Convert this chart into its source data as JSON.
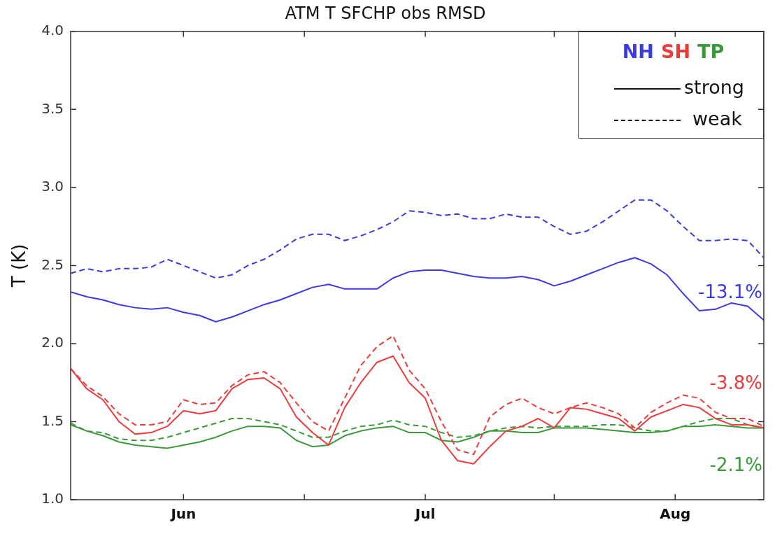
{
  "chart_data": {
    "type": "line",
    "title": "ATM T SFCHP obs RMSD",
    "ylabel": "T (K)",
    "x": [
      "--05-18",
      "--05-20",
      "--05-22",
      "--05-24",
      "--05-26",
      "--05-28",
      "--05-30",
      "--06-01",
      "--06-03",
      "--06-05",
      "--06-07",
      "--06-09",
      "--06-11",
      "--06-13",
      "--06-15",
      "--06-17",
      "--06-19",
      "--06-21",
      "--06-23",
      "--06-25",
      "--06-27",
      "--06-29",
      "--07-01",
      "--07-03",
      "--07-05",
      "--07-07",
      "--07-09",
      "--07-11",
      "--07-13",
      "--07-15",
      "--07-17",
      "--07-19",
      "--07-21",
      "--07-23",
      "--07-25",
      "--07-27",
      "--07-29",
      "--07-31",
      "--08-02",
      "--08-04",
      "--08-06",
      "--08-08",
      "--08-10",
      "--08-12"
    ],
    "series": [
      {
        "color": "#3b3be0",
        "line_style": "solid",
        "values": [
          2.33,
          2.3,
          2.28,
          2.25,
          2.23,
          2.22,
          2.23,
          2.2,
          2.18,
          2.14,
          2.17,
          2.21,
          2.25,
          2.28,
          2.32,
          2.36,
          2.38,
          2.35,
          2.35,
          2.35,
          2.42,
          2.46,
          2.47,
          2.47,
          2.45,
          2.43,
          2.42,
          2.42,
          2.43,
          2.41,
          2.37,
          2.4,
          2.44,
          2.48,
          2.52,
          2.55,
          2.51,
          2.44,
          2.32,
          2.21,
          2.22,
          2.26,
          2.24,
          2.15
        ]
      },
      {
        "color": "#3b3be0",
        "line_style": "dashed",
        "values": [
          2.45,
          2.48,
          2.46,
          2.48,
          2.48,
          2.49,
          2.54,
          2.5,
          2.46,
          2.42,
          2.44,
          2.5,
          2.54,
          2.6,
          2.67,
          2.7,
          2.7,
          2.66,
          2.69,
          2.73,
          2.78,
          2.85,
          2.84,
          2.82,
          2.83,
          2.8,
          2.8,
          2.83,
          2.81,
          2.81,
          2.75,
          2.7,
          2.72,
          2.78,
          2.85,
          2.92,
          2.92,
          2.85,
          2.75,
          2.66,
          2.66,
          2.67,
          2.66,
          2.55
        ]
      },
      {
        "color": "#ee3a3a",
        "line_style": "solid",
        "values": [
          1.84,
          1.71,
          1.64,
          1.5,
          1.42,
          1.43,
          1.47,
          1.57,
          1.55,
          1.57,
          1.71,
          1.77,
          1.78,
          1.71,
          1.53,
          1.43,
          1.35,
          1.59,
          1.75,
          1.88,
          1.92,
          1.75,
          1.65,
          1.38,
          1.25,
          1.23,
          1.34,
          1.44,
          1.47,
          1.52,
          1.46,
          1.59,
          1.58,
          1.55,
          1.52,
          1.44,
          1.53,
          1.57,
          1.61,
          1.59,
          1.52,
          1.48,
          1.48,
          1.46
        ]
      },
      {
        "color": "#ee3a3a",
        "line_style": "dashed",
        "values": [
          1.84,
          1.73,
          1.66,
          1.55,
          1.48,
          1.48,
          1.5,
          1.64,
          1.61,
          1.62,
          1.73,
          1.8,
          1.82,
          1.75,
          1.62,
          1.5,
          1.44,
          1.65,
          1.86,
          1.98,
          2.05,
          1.83,
          1.71,
          1.5,
          1.32,
          1.29,
          1.53,
          1.61,
          1.65,
          1.59,
          1.55,
          1.59,
          1.62,
          1.59,
          1.55,
          1.46,
          1.56,
          1.62,
          1.67,
          1.65,
          1.56,
          1.52,
          1.52,
          1.47
        ]
      },
      {
        "color": "#3a9a3a",
        "line_style": "solid",
        "values": [
          1.48,
          1.44,
          1.41,
          1.37,
          1.35,
          1.34,
          1.33,
          1.35,
          1.37,
          1.4,
          1.44,
          1.47,
          1.47,
          1.46,
          1.38,
          1.34,
          1.35,
          1.41,
          1.44,
          1.46,
          1.47,
          1.43,
          1.43,
          1.38,
          1.37,
          1.4,
          1.44,
          1.44,
          1.43,
          1.43,
          1.46,
          1.46,
          1.46,
          1.45,
          1.44,
          1.43,
          1.43,
          1.44,
          1.47,
          1.47,
          1.48,
          1.47,
          1.46,
          1.46
        ]
      },
      {
        "color": "#3a9a3a",
        "line_style": "dashed",
        "values": [
          1.49,
          1.44,
          1.43,
          1.39,
          1.38,
          1.38,
          1.4,
          1.43,
          1.46,
          1.49,
          1.52,
          1.52,
          1.5,
          1.48,
          1.44,
          1.4,
          1.4,
          1.44,
          1.47,
          1.48,
          1.51,
          1.48,
          1.47,
          1.43,
          1.4,
          1.41,
          1.44,
          1.46,
          1.47,
          1.46,
          1.47,
          1.47,
          1.47,
          1.48,
          1.48,
          1.46,
          1.44,
          1.44,
          1.47,
          1.5,
          1.52,
          1.52,
          1.48,
          1.46
        ]
      }
    ],
    "xlim": [
      "--05-18",
      "--08-12"
    ],
    "xticks": [
      {
        "value": "--06-01",
        "label": "Jun"
      },
      {
        "value": "--06-16",
        "label": null
      },
      {
        "value": "--07-01",
        "label": "Jul"
      },
      {
        "value": "--07-17",
        "label": null
      },
      {
        "value": "--08-01",
        "label": "Aug"
      }
    ],
    "ylim": [
      1.0,
      4.0
    ],
    "yticks": [
      {
        "value": 1,
        "label": "1.0"
      },
      1.5,
      {
        "value": 2,
        "label": "2.0"
      },
      2.5,
      {
        "value": 3,
        "label": "3.0"
      },
      3.5,
      {
        "value": 4,
        "label": "4.0"
      }
    ],
    "grid": false,
    "marker": "none",
    "annotations": [
      "NH",
      "SH",
      "TP",
      "strong",
      "weak",
      "-13.1%",
      "-3.8%",
      "-2.1%"
    ]
  }
}
